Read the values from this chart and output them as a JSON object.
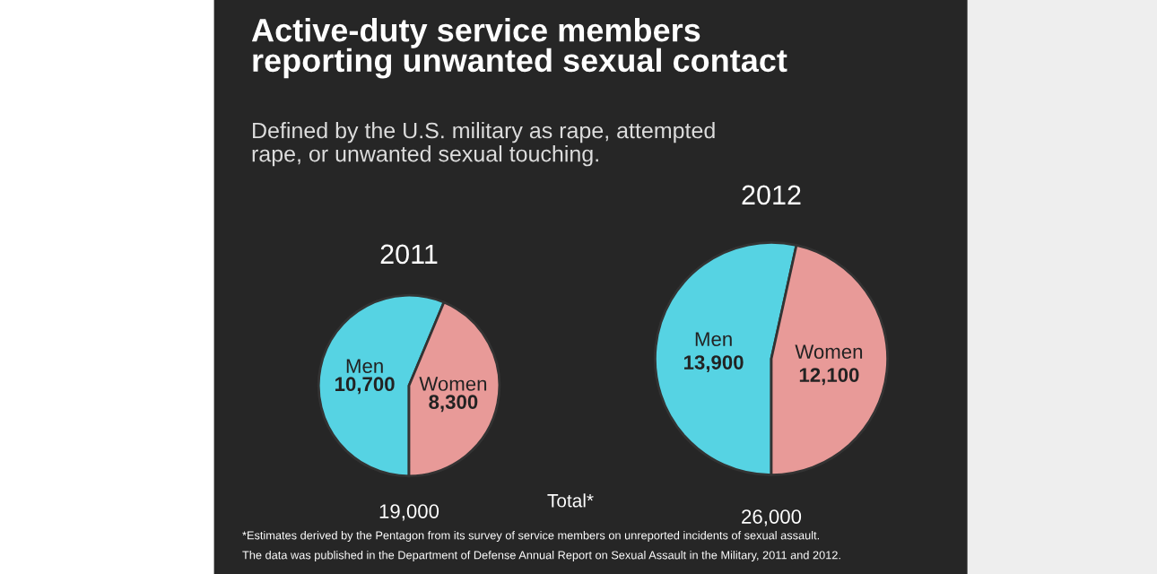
{
  "chart_data": [
    {
      "type": "other",
      "title": "Active-duty service members\nreporting unwanted sexual contact",
      "subtitle": "Defined by the U.S. military as rape, attempted\nrape, or unwanted sexual touching.",
      "annotations": [
        "Total*",
        "*Estimates derived by the Pentagon from its survey of service members on unreported incidents of sexual assault.",
        "The data was published in the Department of Defense Annual Report on Sexual Assault in the Military, 2011 and 2012."
      ]
    },
    {
      "type": "pie",
      "title": "2011",
      "categories": [
        "Men",
        "Women"
      ],
      "values": [
        10700,
        8300
      ],
      "value_labels": [
        "10,700",
        "8,300"
      ],
      "colors": [
        "#56d3e3",
        "#e89a98"
      ],
      "annotations": [
        "19,000"
      ]
    },
    {
      "type": "pie",
      "title": "2012",
      "categories": [
        "Men",
        "Women"
      ],
      "values": [
        13900,
        12100
      ],
      "value_labels": [
        "13,900",
        "12,100"
      ],
      "colors": [
        "#56d3e3",
        "#e89a98"
      ],
      "annotations": [
        "26,000"
      ]
    }
  ]
}
